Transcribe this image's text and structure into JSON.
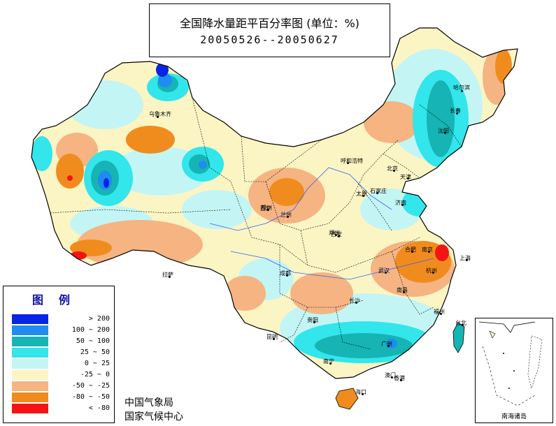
{
  "title": {
    "main": "全国降水量距平百分率图 (单位：%)",
    "dates": "20050526--20050627"
  },
  "legend": {
    "title": "图例",
    "items": [
      {
        "label": "> 200",
        "color": "#0a24e6"
      },
      {
        "label": "100 ~ 200",
        "color": "#1e8cf0"
      },
      {
        "label": "50 ~ 100",
        "color": "#16b4b4"
      },
      {
        "label": "25 ~ 50",
        "color": "#32e6eb"
      },
      {
        "label": "0 ~ 25",
        "color": "#c4f5f5"
      },
      {
        "label": "-25 ~ 0",
        "color": "#fbf5c4"
      },
      {
        "label": "-50 ~ -25",
        "color": "#f5b482"
      },
      {
        "label": "-80 ~ -50",
        "color": "#f08c1e"
      },
      {
        "label": "< -80",
        "color": "#f51414"
      }
    ]
  },
  "organization": {
    "line1": "中国气象局",
    "line2": "国家气候中心"
  },
  "inset": {
    "label": "南海诸岛"
  },
  "cities": [
    {
      "name": "乌鲁木齐"
    },
    {
      "name": "哈尔滨"
    },
    {
      "name": "长春"
    },
    {
      "name": "沈阳"
    },
    {
      "name": "呼和浩特"
    },
    {
      "name": "北京"
    },
    {
      "name": "天津"
    },
    {
      "name": "银川"
    },
    {
      "name": "太原"
    },
    {
      "name": "石家庄"
    },
    {
      "name": "济南"
    },
    {
      "name": "西宁"
    },
    {
      "name": "兰州"
    },
    {
      "name": "郑州"
    },
    {
      "name": "西安"
    },
    {
      "name": "合肥"
    },
    {
      "name": "南京"
    },
    {
      "name": "上海"
    },
    {
      "name": "拉萨"
    },
    {
      "name": "成都"
    },
    {
      "name": "武汉"
    },
    {
      "name": "杭州"
    },
    {
      "name": "南昌"
    },
    {
      "name": "长沙"
    },
    {
      "name": "福州"
    },
    {
      "name": "贵阳"
    },
    {
      "name": "台北"
    },
    {
      "name": "昆明"
    },
    {
      "name": "南宁"
    },
    {
      "name": "广州"
    },
    {
      "name": "香港"
    },
    {
      "name": "澳门"
    },
    {
      "name": "海口"
    }
  ]
}
